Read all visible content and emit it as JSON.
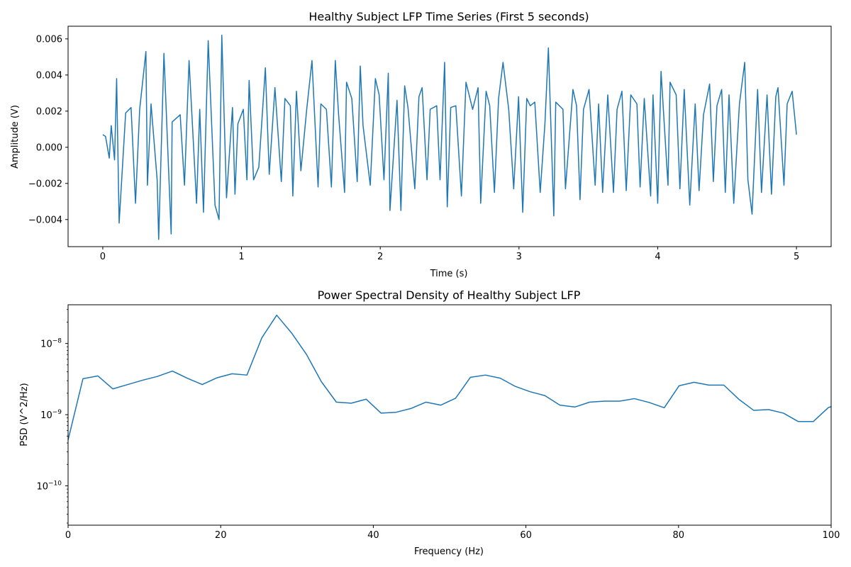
{
  "chart_data": [
    {
      "type": "line",
      "title": "Healthy Subject LFP Time Series (First 5 seconds)",
      "xlabel": "Time (s)",
      "ylabel": "Amplitude (V)",
      "xlim": [
        -0.25,
        5.25
      ],
      "ylim": [
        -0.0055,
        0.0067
      ],
      "xticks": [
        0,
        1,
        2,
        3,
        4,
        5
      ],
      "xtick_labels": [
        "0",
        "1",
        "2",
        "3",
        "4",
        "5"
      ],
      "yticks": [
        -0.004,
        -0.002,
        0.0,
        0.002,
        0.004,
        0.006
      ],
      "ytick_labels": [
        "−0.004",
        "−0.002",
        "0.000",
        "0.002",
        "0.004",
        "0.006"
      ],
      "grid": false,
      "line_color": "#1f77b4",
      "series": [
        {
          "name": "",
          "x": [
            0.0,
            0.02,
            0.047,
            0.061,
            0.085,
            0.1,
            0.118,
            0.165,
            0.204,
            0.236,
            0.266,
            0.311,
            0.322,
            0.348,
            0.392,
            0.403,
            0.441,
            0.493,
            0.5,
            0.558,
            0.589,
            0.622,
            0.676,
            0.699,
            0.726,
            0.76,
            0.809,
            0.838,
            0.858,
            0.892,
            0.935,
            0.953,
            0.974,
            1.013,
            1.039,
            1.055,
            1.087,
            1.125,
            1.172,
            1.2,
            1.241,
            1.287,
            1.313,
            1.352,
            1.37,
            1.396,
            1.428,
            1.47,
            1.508,
            1.552,
            1.572,
            1.612,
            1.648,
            1.676,
            1.7,
            1.743,
            1.757,
            1.795,
            1.834,
            1.856,
            1.876,
            1.928,
            1.965,
            1.992,
            2.027,
            2.058,
            2.07,
            2.121,
            2.149,
            2.176,
            2.2,
            2.249,
            2.279,
            2.302,
            2.337,
            2.36,
            2.407,
            2.431,
            2.464,
            2.483,
            2.508,
            2.545,
            2.585,
            2.618,
            2.666,
            2.705,
            2.724,
            2.763,
            2.789,
            2.823,
            2.853,
            2.885,
            2.926,
            2.962,
            2.997,
            3.027,
            3.056,
            3.081,
            3.114,
            3.153,
            3.187,
            3.212,
            3.251,
            3.265,
            3.317,
            3.335,
            3.389,
            3.415,
            3.44,
            3.465,
            3.505,
            3.549,
            3.574,
            3.603,
            3.64,
            3.681,
            3.707,
            3.742,
            3.773,
            3.806,
            3.85,
            3.873,
            3.903,
            3.949,
            3.966,
            4.0,
            4.024,
            4.074,
            4.089,
            4.133,
            4.16,
            4.191,
            4.231,
            4.27,
            4.298,
            4.33,
            4.374,
            4.401,
            4.427,
            4.461,
            4.487,
            4.514,
            4.548,
            4.589,
            4.627,
            4.65,
            4.68,
            4.72,
            4.748,
            4.788,
            4.82,
            4.851,
            4.867,
            4.91,
            4.933,
            4.969,
            5.0
          ],
          "y": [
            0.0007,
            0.0006,
            -0.0006,
            0.0012,
            -0.0007,
            0.0038,
            -0.0042,
            0.0019,
            0.0022,
            -0.0031,
            0.0021,
            0.0053,
            -0.0021,
            0.0024,
            -0.0018,
            -0.0051,
            0.0052,
            -0.0048,
            0.0014,
            0.0018,
            -0.0021,
            0.0048,
            -0.0031,
            0.0021,
            -0.0036,
            0.0059,
            -0.0032,
            -0.004,
            0.0062,
            -0.0028,
            0.0022,
            -0.0026,
            0.0013,
            0.0021,
            -0.0018,
            0.0037,
            -0.0018,
            -0.0011,
            0.0044,
            -0.0015,
            0.0033,
            -0.0019,
            0.0027,
            0.0023,
            -0.0027,
            0.0031,
            -0.0013,
            0.0021,
            0.0048,
            -0.0022,
            0.0024,
            0.0021,
            -0.0022,
            0.0048,
            0.0018,
            -0.0025,
            0.0036,
            0.0027,
            -0.0019,
            0.0045,
            0.0012,
            -0.0021,
            0.0038,
            0.0029,
            -0.0018,
            0.0041,
            -0.0035,
            0.0026,
            -0.0035,
            0.0034,
            0.0022,
            -0.0023,
            0.0028,
            0.0033,
            -0.0018,
            0.0021,
            0.0023,
            -0.0018,
            0.0047,
            -0.0033,
            0.0022,
            0.0023,
            -0.0027,
            0.0036,
            0.0021,
            0.0033,
            -0.0031,
            0.0031,
            0.0023,
            -0.0025,
            0.0027,
            0.0047,
            0.0021,
            -0.0023,
            0.0028,
            -0.0036,
            0.0027,
            0.0023,
            0.0025,
            -0.0025,
            0.0013,
            0.0055,
            -0.0038,
            0.0025,
            0.0021,
            -0.0023,
            0.0032,
            0.0023,
            -0.0029,
            0.0021,
            0.0032,
            -0.0021,
            0.0024,
            -0.0025,
            0.0029,
            -0.0025,
            0.0021,
            0.0031,
            -0.0024,
            0.0029,
            0.0024,
            -0.0022,
            0.0027,
            -0.0027,
            0.0029,
            -0.0031,
            0.0042,
            -0.0021,
            0.0036,
            0.0029,
            -0.0023,
            0.0032,
            -0.0032,
            0.0024,
            -0.0024,
            0.0018,
            0.0035,
            -0.0019,
            0.0023,
            0.0032,
            -0.0025,
            0.0029,
            -0.0031,
            0.0024,
            0.0047,
            -0.0018,
            -0.0037,
            0.0032,
            -0.0025,
            0.0029,
            -0.0026,
            0.0028,
            0.0033,
            -0.0021,
            0.0024,
            0.0031,
            0.0007
          ]
        }
      ]
    },
    {
      "type": "line",
      "title": "Power Spectral Density of Healthy Subject LFP",
      "xlabel": "Frequency (Hz)",
      "ylabel": "PSD (V^2/Hz)",
      "xlim": [
        0,
        100
      ],
      "ylim": [
        2.8e-11,
        3.5e-08
      ],
      "yscale": "log",
      "xticks": [
        0,
        20,
        40,
        60,
        80,
        100
      ],
      "xtick_labels": [
        "0",
        "20",
        "40",
        "60",
        "80",
        "100"
      ],
      "ytick_exponents": [
        -8,
        -9,
        -10
      ],
      "ytick_base": "10",
      "grid": false,
      "line_color": "#1f77b4",
      "series": [
        {
          "name": "",
          "x": [
            0,
            1.95,
            3.91,
            5.86,
            7.81,
            9.77,
            11.72,
            13.67,
            15.63,
            17.58,
            19.53,
            21.48,
            23.44,
            25.39,
            27.34,
            29.3,
            31.25,
            33.2,
            35.16,
            37.11,
            39.06,
            41.02,
            42.97,
            44.92,
            46.88,
            48.83,
            50.78,
            52.73,
            54.69,
            56.64,
            58.59,
            60.55,
            62.5,
            64.45,
            66.41,
            68.36,
            70.31,
            72.27,
            74.22,
            76.17,
            78.13,
            80.08,
            82.03,
            83.98,
            85.94,
            87.89,
            89.84,
            91.8,
            93.75,
            95.7,
            97.66,
            99.61,
            100
          ],
          "y": [
            4.4e-10,
            3.2e-09,
            3.5e-09,
            2.3e-09,
            2.65e-09,
            3.05e-09,
            3.45e-09,
            4.1e-09,
            3.25e-09,
            2.65e-09,
            3.3e-09,
            3.75e-09,
            3.6e-09,
            1.2e-08,
            2.5e-08,
            1.4e-08,
            7e-09,
            2.9e-09,
            1.5e-09,
            1.45e-09,
            1.65e-09,
            1.05e-09,
            1.08e-09,
            1.22e-09,
            1.5e-09,
            1.36e-09,
            1.7e-09,
            3.35e-09,
            3.6e-09,
            3.25e-09,
            2.5e-09,
            2.1e-09,
            1.85e-09,
            1.36e-09,
            1.28e-09,
            1.5e-09,
            1.55e-09,
            1.55e-09,
            1.68e-09,
            1.48e-09,
            1.25e-09,
            2.55e-09,
            2.85e-09,
            2.6e-09,
            2.6e-09,
            1.65e-09,
            1.15e-09,
            1.18e-09,
            1.05e-09,
            8e-10,
            8e-10,
            1.25e-09,
            1.3e-09
          ]
        }
      ]
    }
  ]
}
